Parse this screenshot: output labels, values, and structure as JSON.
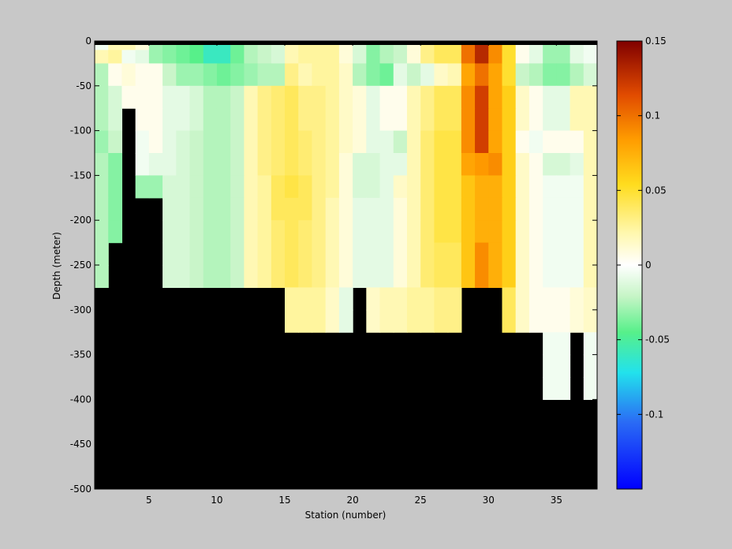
{
  "chart_data": {
    "type": "heatmap",
    "xlabel": "Station (number)",
    "ylabel": "Depth (meter)",
    "x_ticks": [
      5,
      10,
      15,
      20,
      25,
      30,
      35
    ],
    "x_tick_labels": [
      "5",
      "10",
      "15",
      "20",
      "25",
      "30",
      "35"
    ],
    "y_ticks": [
      0,
      -50,
      -100,
      -150,
      -200,
      -250,
      -300,
      -350,
      -400,
      -450,
      -500
    ],
    "y_tick_labels": [
      "0",
      "-50",
      "-100",
      "-150",
      "-200",
      "-250",
      "-300",
      "-350",
      "-400",
      "-450",
      "-500"
    ],
    "xlim": [
      1,
      38
    ],
    "ylim": [
      -500,
      0
    ],
    "colorbar": {
      "colormap": "jet-like diverging (blue-cyan-green-white-yellow-orange-dark red)",
      "range": [
        -0.15,
        0.15
      ],
      "ticks": [
        0.15,
        0.1,
        0.05,
        0,
        -0.05,
        -0.1
      ],
      "tick_labels": [
        "0.15",
        "0.1",
        "0.05",
        "0",
        "-0.05",
        "-0.1"
      ]
    },
    "mask_color": "#000000",
    "stations": [
      1,
      2,
      3,
      4,
      5,
      6,
      7,
      8,
      9,
      10,
      11,
      12,
      13,
      14,
      15,
      16,
      17,
      18,
      19,
      20,
      21,
      22,
      23,
      24,
      25,
      26,
      27,
      28,
      29,
      30,
      31,
      32,
      33,
      34,
      35,
      36,
      37
    ],
    "depth_top_edges": [
      0,
      -10,
      -25,
      -50,
      -75,
      -100,
      -125,
      -150,
      -175,
      -200,
      -225,
      -250,
      -275,
      -300,
      -325,
      -350,
      -375,
      -400
    ],
    "depth_bottom_edges": [
      -10,
      -25,
      -50,
      -75,
      -100,
      -125,
      -150,
      -175,
      -200,
      -225,
      -250,
      -275,
      -300,
      -325,
      -350,
      -375,
      -400,
      -500
    ],
    "bottom_depth_m": [
      250,
      200,
      75,
      150,
      150,
      250,
      250,
      250,
      250,
      250,
      250,
      250,
      250,
      250,
      300,
      300,
      300,
      300,
      300,
      250,
      300,
      300,
      300,
      300,
      300,
      300,
      300,
      250,
      250,
      250,
      300,
      300,
      300,
      400,
      400,
      300,
      400
    ],
    "values": [
      [
        -0.005,
        0.02,
        0.02,
        0.01,
        -0.03,
        -0.035,
        -0.04,
        -0.045,
        -0.06,
        -0.06,
        -0.04,
        -0.025,
        -0.02,
        -0.015,
        0.02,
        0.025,
        0.025,
        0.025,
        0.01,
        -0.015,
        -0.035,
        -0.025,
        -0.02,
        0.01,
        0.03,
        0.04,
        0.04,
        0.1,
        0.13,
        0.09,
        0.05,
        0.005,
        -0.01,
        -0.03,
        -0.03,
        -0.01,
        -0.005
      ],
      [
        0.02,
        0.025,
        -0.005,
        -0.01,
        -0.03,
        -0.035,
        -0.04,
        -0.045,
        -0.06,
        -0.06,
        -0.04,
        -0.025,
        -0.02,
        -0.015,
        0.02,
        0.025,
        0.025,
        0.025,
        0.01,
        -0.015,
        -0.035,
        -0.025,
        -0.02,
        0.01,
        0.03,
        0.04,
        0.04,
        0.1,
        0.13,
        0.09,
        0.05,
        0.005,
        -0.01,
        -0.03,
        -0.03,
        -0.01,
        -0.005
      ],
      [
        -0.025,
        0.005,
        0.01,
        0.005,
        0.005,
        -0.02,
        -0.03,
        -0.03,
        -0.035,
        -0.04,
        -0.035,
        -0.03,
        -0.025,
        -0.025,
        0.03,
        0.02,
        0.025,
        0.025,
        0.015,
        -0.025,
        -0.035,
        -0.04,
        -0.01,
        -0.02,
        -0.01,
        0.015,
        0.02,
        0.08,
        0.1,
        0.08,
        0.05,
        -0.02,
        -0.025,
        -0.035,
        -0.035,
        -0.025,
        -0.015
      ],
      [
        -0.025,
        -0.015,
        0.005,
        0.005,
        0.005,
        -0.01,
        -0.01,
        -0.015,
        -0.025,
        -0.025,
        -0.02,
        0.02,
        0.03,
        0.035,
        0.04,
        0.03,
        0.03,
        0.025,
        0.015,
        0.01,
        -0.01,
        0.005,
        0.005,
        0.02,
        0.03,
        0.04,
        0.04,
        0.09,
        0.12,
        0.08,
        0.06,
        0.015,
        0.005,
        -0.01,
        -0.01,
        0.02,
        0.02
      ],
      [
        -0.025,
        -0.015,
        null,
        0.005,
        0.005,
        -0.01,
        -0.01,
        -0.015,
        -0.025,
        -0.025,
        -0.02,
        0.02,
        0.03,
        0.035,
        0.04,
        0.03,
        0.03,
        0.025,
        0.015,
        0.01,
        -0.01,
        0.005,
        0.005,
        0.02,
        0.03,
        0.04,
        0.04,
        0.09,
        0.12,
        0.08,
        0.06,
        0.015,
        0.005,
        -0.01,
        -0.01,
        0.02,
        0.02
      ],
      [
        -0.03,
        -0.02,
        null,
        -0.005,
        0.005,
        -0.01,
        -0.015,
        -0.02,
        -0.025,
        -0.025,
        -0.02,
        0.02,
        0.03,
        0.035,
        0.04,
        0.035,
        0.03,
        0.025,
        0.015,
        0.01,
        -0.01,
        -0.01,
        -0.02,
        0.02,
        0.035,
        0.045,
        0.045,
        0.09,
        0.12,
        0.08,
        0.06,
        0.005,
        -0.005,
        0.005,
        0.005,
        0.005,
        0.02
      ],
      [
        -0.025,
        -0.035,
        null,
        -0.005,
        -0.01,
        -0.01,
        -0.015,
        -0.02,
        -0.025,
        -0.025,
        -0.02,
        0.02,
        0.03,
        0.035,
        0.04,
        0.035,
        0.03,
        0.025,
        0.01,
        -0.015,
        -0.015,
        -0.01,
        -0.01,
        0.02,
        0.035,
        0.045,
        0.045,
        0.08,
        0.085,
        0.09,
        0.06,
        0.015,
        0.005,
        -0.015,
        -0.015,
        -0.01,
        0.02
      ],
      [
        -0.025,
        -0.035,
        null,
        -0.03,
        -0.03,
        -0.015,
        -0.015,
        -0.02,
        -0.025,
        -0.025,
        -0.02,
        0.02,
        0.025,
        0.04,
        0.045,
        0.04,
        0.03,
        0.025,
        0.01,
        -0.015,
        -0.015,
        -0.01,
        0.015,
        0.02,
        0.035,
        0.045,
        0.045,
        0.065,
        0.075,
        0.075,
        0.06,
        0.015,
        0.005,
        -0.005,
        -0.005,
        -0.005,
        0.02
      ],
      [
        -0.025,
        -0.035,
        null,
        null,
        null,
        -0.015,
        -0.015,
        -0.02,
        -0.025,
        -0.025,
        -0.02,
        0.02,
        0.025,
        0.04,
        0.04,
        0.04,
        0.03,
        0.02,
        0.01,
        -0.01,
        -0.01,
        -0.01,
        0.01,
        0.02,
        0.035,
        0.045,
        0.045,
        0.065,
        0.075,
        0.075,
        0.06,
        0.015,
        0.005,
        -0.005,
        -0.005,
        -0.005,
        0.02
      ],
      [
        -0.025,
        -0.035,
        null,
        null,
        null,
        -0.015,
        -0.015,
        -0.02,
        -0.025,
        -0.025,
        -0.02,
        0.02,
        0.025,
        0.035,
        0.04,
        0.035,
        0.03,
        0.02,
        0.01,
        -0.01,
        -0.01,
        -0.01,
        0.01,
        0.02,
        0.035,
        0.045,
        0.045,
        0.065,
        0.075,
        0.075,
        0.06,
        0.015,
        0.005,
        -0.005,
        -0.005,
        -0.005,
        0.02
      ],
      [
        -0.025,
        null,
        null,
        null,
        null,
        -0.015,
        -0.015,
        -0.02,
        -0.025,
        -0.025,
        -0.02,
        0.02,
        0.025,
        0.035,
        0.04,
        0.035,
        0.03,
        0.02,
        0.01,
        -0.01,
        -0.01,
        -0.01,
        0.01,
        0.02,
        0.035,
        0.04,
        0.04,
        0.065,
        0.09,
        0.075,
        0.06,
        0.015,
        0.005,
        -0.005,
        -0.005,
        -0.005,
        0.02
      ],
      [
        -0.025,
        null,
        null,
        null,
        null,
        -0.015,
        -0.015,
        -0.02,
        -0.025,
        -0.025,
        -0.02,
        0.02,
        0.025,
        0.035,
        0.04,
        0.035,
        0.03,
        0.02,
        0.01,
        -0.01,
        -0.01,
        -0.01,
        0.01,
        0.02,
        0.035,
        0.04,
        0.04,
        0.065,
        0.09,
        0.075,
        0.06,
        0.015,
        0.005,
        -0.005,
        -0.005,
        -0.005,
        0.02
      ],
      [
        null,
        null,
        null,
        null,
        null,
        null,
        null,
        null,
        null,
        null,
        null,
        null,
        null,
        null,
        0.025,
        0.025,
        0.025,
        0.015,
        -0.01,
        null,
        0.015,
        0.02,
        0.02,
        0.025,
        0.025,
        0.03,
        0.03,
        null,
        null,
        null,
        0.04,
        0.015,
        0.005,
        0.005,
        0.005,
        0.01,
        0.015
      ],
      [
        null,
        null,
        null,
        null,
        null,
        null,
        null,
        null,
        null,
        null,
        null,
        null,
        null,
        null,
        0.025,
        0.025,
        0.025,
        0.015,
        -0.01,
        null,
        0.015,
        0.02,
        0.02,
        0.025,
        0.025,
        0.03,
        0.03,
        null,
        null,
        null,
        0.04,
        0.015,
        0.005,
        0.005,
        0.005,
        0.01,
        0.015
      ],
      [
        null,
        null,
        null,
        null,
        null,
        null,
        null,
        null,
        null,
        null,
        null,
        null,
        null,
        null,
        null,
        null,
        null,
        null,
        null,
        null,
        null,
        null,
        null,
        null,
        null,
        null,
        null,
        null,
        null,
        null,
        null,
        null,
        null,
        -0.005,
        -0.005,
        null,
        -0.005
      ],
      [
        null,
        null,
        null,
        null,
        null,
        null,
        null,
        null,
        null,
        null,
        null,
        null,
        null,
        null,
        null,
        null,
        null,
        null,
        null,
        null,
        null,
        null,
        null,
        null,
        null,
        null,
        null,
        null,
        null,
        null,
        null,
        null,
        null,
        -0.005,
        -0.005,
        null,
        -0.005
      ],
      [
        null,
        null,
        null,
        null,
        null,
        null,
        null,
        null,
        null,
        null,
        null,
        null,
        null,
        null,
        null,
        null,
        null,
        null,
        null,
        null,
        null,
        null,
        null,
        null,
        null,
        null,
        null,
        null,
        null,
        null,
        null,
        null,
        null,
        -0.005,
        -0.005,
        null,
        -0.005
      ],
      [
        null,
        null,
        null,
        null,
        null,
        null,
        null,
        null,
        null,
        null,
        null,
        null,
        null,
        null,
        null,
        null,
        null,
        null,
        null,
        null,
        null,
        null,
        null,
        null,
        null,
        null,
        null,
        null,
        null,
        null,
        null,
        null,
        null,
        null,
        null,
        null,
        null
      ]
    ]
  }
}
